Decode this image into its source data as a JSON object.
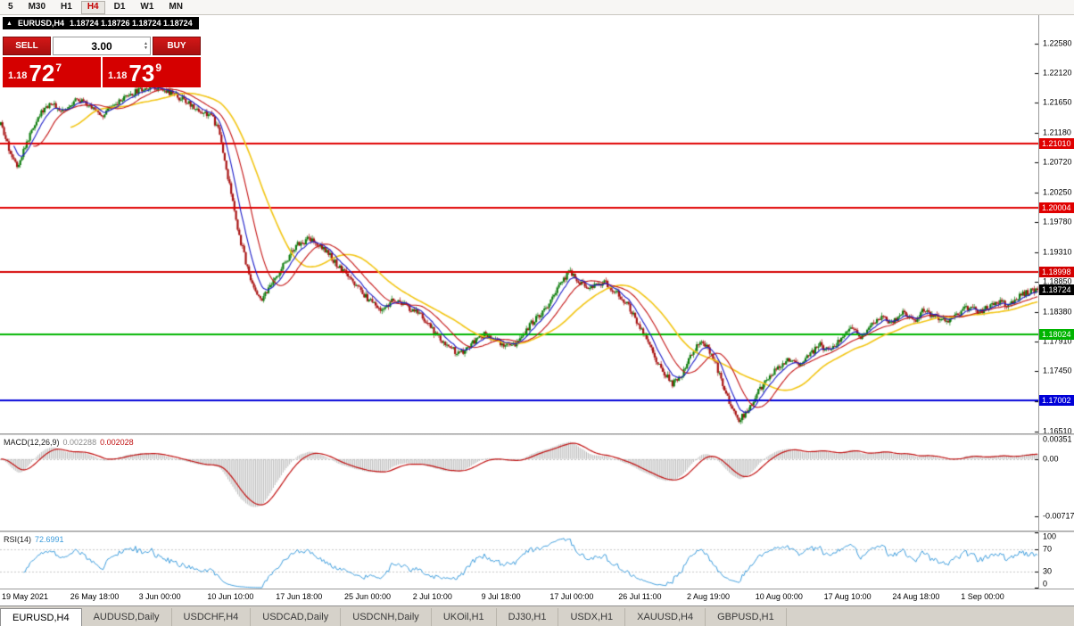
{
  "toolbar": {
    "timeframes": [
      {
        "label": "5",
        "active": false
      },
      {
        "label": "M30",
        "active": false
      },
      {
        "label": "H1",
        "active": false
      },
      {
        "label": "H4",
        "active": true
      },
      {
        "label": "D1",
        "active": false
      },
      {
        "label": "W1",
        "active": false
      },
      {
        "label": "MN",
        "active": false
      }
    ]
  },
  "chart": {
    "title_symbol": "EURUSD,H4",
    "title_quotes": "1.18724 1.18726 1.18724 1.18724",
    "trade_widget": {
      "sell_label": "SELL",
      "buy_label": "BUY",
      "volume": "3.00",
      "bid_small": "1.18",
      "bid_big": "72",
      "bid_sup": "7",
      "ask_small": "1.18",
      "ask_big": "73",
      "ask_sup": "9"
    },
    "price_axis_ticks": [
      "1.22580",
      "1.22120",
      "1.21650",
      "1.21180",
      "1.20720",
      "1.20250",
      "1.19780",
      "1.19310",
      "1.18850",
      "1.18380",
      "1.17910",
      "1.17450",
      "1.16980",
      "1.16510"
    ],
    "levels": [
      {
        "price": 1.2101,
        "label": "1.21010",
        "color": "#e00000"
      },
      {
        "price": 1.20004,
        "label": "1.20004",
        "color": "#e00000"
      },
      {
        "price": 1.18998,
        "label": "1.18998",
        "color": "#d40000"
      },
      {
        "price": 1.18024,
        "label": "1.18024",
        "color": "#00b400"
      },
      {
        "price": 1.17002,
        "label": "1.17002",
        "color": "#0000d8"
      }
    ],
    "current_price": {
      "value": 1.18724,
      "label": "1.18724",
      "color": "#000000"
    }
  },
  "macd": {
    "label": "MACD(12,26,9)",
    "value1": "0.002288",
    "value2": "0.002028",
    "axis": [
      "0.00351",
      "0.00",
      "-0.00717"
    ],
    "axis_values": [
      0.00351,
      0,
      -0.00717
    ]
  },
  "rsi": {
    "label": "RSI(14)",
    "value": "72.6991",
    "axis": [
      "100",
      "70",
      "30",
      "0"
    ],
    "axis_values": [
      100,
      70,
      30,
      0
    ],
    "levels": [
      70,
      30
    ]
  },
  "time_axis": [
    "19 May 2021",
    "26 May 18:00",
    "3 Jun 00:00",
    "10 Jun 10:00",
    "17 Jun 18:00",
    "25 Jun 00:00",
    "2 Jul 10:00",
    "9 Jul 18:00",
    "17 Jul 00:00",
    "26 Jul 11:00",
    "2 Aug 19:00",
    "10 Aug 00:00",
    "17 Aug 10:00",
    "24 Aug 18:00",
    "1 Sep 00:00"
  ],
  "tabs": [
    {
      "label": "EURUSD,H4",
      "active": true
    },
    {
      "label": "AUDUSD,Daily",
      "active": false
    },
    {
      "label": "USDCHF,H4",
      "active": false
    },
    {
      "label": "USDCAD,Daily",
      "active": false
    },
    {
      "label": "USDCNH,Daily",
      "active": false
    },
    {
      "label": "UKOil,H1",
      "active": false
    },
    {
      "label": "DJ30,H1",
      "active": false
    },
    {
      "label": "USDX,H1",
      "active": false
    },
    {
      "label": "XAUUSD,H4",
      "active": false
    },
    {
      "label": "GBPUSD,H1",
      "active": false
    }
  ],
  "chart_data": {
    "type": "candlestick",
    "symbol": "EURUSD",
    "timeframe": "H4",
    "y_range": [
      1.1648,
      1.2302
    ],
    "candles_count": 640,
    "last_close": 1.18724,
    "noise": 0.001,
    "wick": 0.0005,
    "price_path": [
      [
        0.0,
        1.213
      ],
      [
        0.008,
        1.2092
      ],
      [
        0.016,
        1.2068
      ],
      [
        0.025,
        1.2102
      ],
      [
        0.035,
        1.2142
      ],
      [
        0.048,
        1.2166
      ],
      [
        0.06,
        1.215
      ],
      [
        0.072,
        1.2172
      ],
      [
        0.085,
        1.216
      ],
      [
        0.098,
        1.2146
      ],
      [
        0.112,
        1.2163
      ],
      [
        0.128,
        1.218
      ],
      [
        0.145,
        1.2192
      ],
      [
        0.16,
        1.2184
      ],
      [
        0.175,
        1.2171
      ],
      [
        0.19,
        1.2154
      ],
      [
        0.203,
        1.2146
      ],
      [
        0.211,
        1.2118
      ],
      [
        0.218,
        1.2058
      ],
      [
        0.225,
        1.1998
      ],
      [
        0.232,
        1.1944
      ],
      [
        0.24,
        1.1894
      ],
      [
        0.25,
        1.1856
      ],
      [
        0.261,
        1.1878
      ],
      [
        0.273,
        1.1913
      ],
      [
        0.286,
        1.1943
      ],
      [
        0.298,
        1.1952
      ],
      [
        0.311,
        1.1939
      ],
      [
        0.324,
        1.1913
      ],
      [
        0.339,
        1.1885
      ],
      [
        0.354,
        1.1859
      ],
      [
        0.367,
        1.1842
      ],
      [
        0.379,
        1.1857
      ],
      [
        0.392,
        1.1846
      ],
      [
        0.405,
        1.1832
      ],
      [
        0.418,
        1.1806
      ],
      [
        0.43,
        1.1785
      ],
      [
        0.443,
        1.1772
      ],
      [
        0.455,
        1.179
      ],
      [
        0.467,
        1.1803
      ],
      [
        0.48,
        1.1792
      ],
      [
        0.493,
        1.1783
      ],
      [
        0.505,
        1.1806
      ],
      [
        0.518,
        1.1832
      ],
      [
        0.53,
        1.1851
      ],
      [
        0.541,
        1.1884
      ],
      [
        0.549,
        1.1901
      ],
      [
        0.558,
        1.1883
      ],
      [
        0.57,
        1.1876
      ],
      [
        0.582,
        1.1885
      ],
      [
        0.594,
        1.1868
      ],
      [
        0.606,
        1.1846
      ],
      [
        0.617,
        1.1812
      ],
      [
        0.628,
        1.1776
      ],
      [
        0.638,
        1.1746
      ],
      [
        0.648,
        1.1726
      ],
      [
        0.657,
        1.174
      ],
      [
        0.666,
        1.1772
      ],
      [
        0.674,
        1.1792
      ],
      [
        0.682,
        1.1782
      ],
      [
        0.69,
        1.1756
      ],
      [
        0.697,
        1.1721
      ],
      [
        0.704,
        1.1691
      ],
      [
        0.712,
        1.167
      ],
      [
        0.72,
        1.1681
      ],
      [
        0.73,
        1.1712
      ],
      [
        0.74,
        1.1736
      ],
      [
        0.75,
        1.175
      ],
      [
        0.76,
        1.1762
      ],
      [
        0.77,
        1.1752
      ],
      [
        0.78,
        1.177
      ],
      [
        0.79,
        1.1786
      ],
      [
        0.8,
        1.1776
      ],
      [
        0.81,
        1.1796
      ],
      [
        0.82,
        1.1812
      ],
      [
        0.83,
        1.18
      ],
      [
        0.84,
        1.1818
      ],
      [
        0.85,
        1.1832
      ],
      [
        0.86,
        1.182
      ],
      [
        0.87,
        1.1836
      ],
      [
        0.88,
        1.1822
      ],
      [
        0.89,
        1.184
      ],
      [
        0.9,
        1.1832
      ],
      [
        0.915,
        1.1822
      ],
      [
        0.93,
        1.1845
      ],
      [
        0.945,
        1.1838
      ],
      [
        0.96,
        1.1855
      ],
      [
        0.972,
        1.1848
      ],
      [
        0.984,
        1.1865
      ],
      [
        1.0,
        1.1874
      ]
    ],
    "moving_averages": [
      {
        "period": 44,
        "method": "sma",
        "color": "#f2c514",
        "width": 1.6
      },
      {
        "period": 21,
        "method": "sma",
        "color": "#c41414",
        "width": 1.1
      },
      {
        "period": 9,
        "method": "ema",
        "color": "#1b1bc8",
        "width": 1.1
      }
    ],
    "macd_scale": [
      0.003,
      -0.009
    ],
    "colors": {
      "up": "#0e7d0e",
      "down": "#a81212",
      "macd_hist": "#bcbcbc",
      "macd_signal": "#c01010",
      "rsi": "#3c9cdc"
    }
  }
}
